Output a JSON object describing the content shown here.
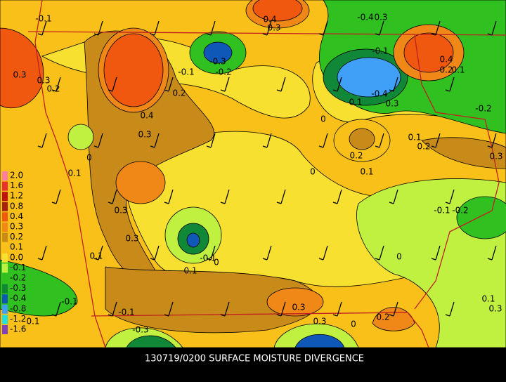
{
  "caption": "130719/0200 SURFACE MOISTURE DIVERGENCE",
  "legend": [
    {
      "label": "2.0",
      "color": "#ff7fa0"
    },
    {
      "label": "1.6",
      "color": "#e83030"
    },
    {
      "label": "1.2",
      "color": "#c01010"
    },
    {
      "label": "0.8",
      "color": "#a82010"
    },
    {
      "label": "0.4",
      "color": "#f05810"
    },
    {
      "label": "0.3",
      "color": "#f08818"
    },
    {
      "label": "0.2",
      "color": "#c88a18"
    },
    {
      "label": "0.1",
      "color": "#f8c018"
    },
    {
      "label": "0.0",
      "color": "#f8e030"
    },
    {
      "label": "-0.1",
      "color": "#c0f040"
    },
    {
      "label": "-0.2",
      "color": "#30c020"
    },
    {
      "label": "-0.3",
      "color": "#108838"
    },
    {
      "label": "-0.4",
      "color": "#1058b8"
    },
    {
      "label": "-0.8",
      "color": "#40a0f8"
    },
    {
      "label": "-1.2",
      "color": "#20e0e0"
    },
    {
      "label": "-1.6",
      "color": "#8040c0"
    }
  ],
  "contour_labels": [
    "-0.1",
    "0.4",
    "0.3",
    "-0.4",
    "0.3",
    "0.3",
    "0.3",
    "0.2",
    "-0.3",
    "-0.1",
    "-0.2",
    "0.2",
    "0.4",
    "0.3",
    "-0.1",
    "0.4",
    "0.2",
    "0.1",
    "-0.4",
    "0.3",
    "0.1",
    "-0.2",
    "0",
    "0.1",
    "0.2",
    "0.3",
    "0.2",
    "0.1",
    "0",
    "0",
    "0.1",
    "0.3",
    "0.3",
    "-0.1",
    "-0.2",
    "0.1",
    "-0.1",
    "0",
    "0.1",
    "0",
    "-0.1",
    "-0.1",
    "0.3",
    "0.1",
    "0.3",
    "0.2",
    "0",
    "-0.3",
    "0.3",
    "0.1"
  ]
}
